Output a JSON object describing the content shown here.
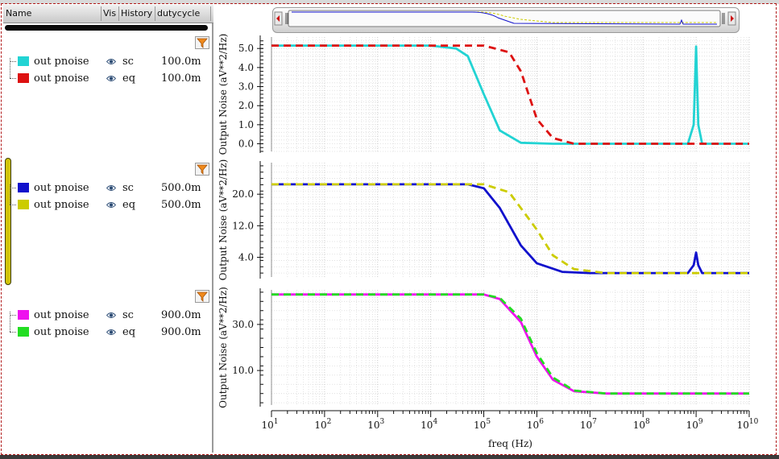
{
  "legend": {
    "headers": {
      "name": "Name",
      "vis": "Vis",
      "history": "History",
      "dutycycle": "dutycycle"
    },
    "groups": [
      {
        "rows": [
          {
            "name": "out pnoise",
            "history": "sc",
            "dutycycle": "100.0m",
            "color": "#22d3d3"
          },
          {
            "name": "out pnoise",
            "history": "eq",
            "dutycycle": "100.0m",
            "color": "#dd1111"
          }
        ]
      },
      {
        "rows": [
          {
            "name": "out pnoise",
            "history": "sc",
            "dutycycle": "500.0m",
            "color": "#1111cc"
          },
          {
            "name": "out pnoise",
            "history": "eq",
            "dutycycle": "500.0m",
            "color": "#cccc00"
          }
        ]
      },
      {
        "rows": [
          {
            "name": "out pnoise",
            "history": "sc",
            "dutycycle": "900.0m",
            "color": "#ee11ee"
          },
          {
            "name": "out pnoise",
            "history": "eq",
            "dutycycle": "900.0m",
            "color": "#22dd22"
          }
        ]
      }
    ]
  },
  "plot": {
    "xlabel": "freq (Hz)",
    "ylabel": "Output Noise (aV**2/Hz)",
    "x_ticks": [
      {
        "base": "10",
        "exp": "1"
      },
      {
        "base": "10",
        "exp": "2"
      },
      {
        "base": "10",
        "exp": "3"
      },
      {
        "base": "10",
        "exp": "4"
      },
      {
        "base": "10",
        "exp": "5"
      },
      {
        "base": "10",
        "exp": "6"
      },
      {
        "base": "10",
        "exp": "7"
      },
      {
        "base": "10",
        "exp": "8"
      },
      {
        "base": "10",
        "exp": "9"
      },
      {
        "base": "10",
        "exp": "10"
      }
    ]
  },
  "chart_data": [
    {
      "type": "line",
      "x_scale": "log",
      "xlim": [
        10,
        10000000000
      ],
      "ylim": [
        -0.4,
        5.6
      ],
      "y_ticks": [
        "0.0",
        "1.0",
        "2.0",
        "3.0",
        "4.0",
        "5.0"
      ],
      "y_tick_values": [
        0,
        1,
        2,
        3,
        4,
        5
      ],
      "series": [
        {
          "color": "#22d3d3",
          "style": "solid",
          "x": [
            10,
            10000,
            30000,
            50000,
            100000,
            200000,
            500000,
            2000000,
            700000000,
            900000000,
            1000000000,
            1100000000,
            1300000000,
            10000000000
          ],
          "y": [
            5.15,
            5.15,
            5.0,
            4.6,
            2.6,
            0.7,
            0.05,
            0.0,
            0.0,
            1.0,
            5.1,
            1.0,
            0.0,
            0.0
          ]
        },
        {
          "color": "#dd1111",
          "style": "dashed",
          "x": [
            10,
            100000,
            300000,
            500000,
            1000000,
            2000000,
            5000000,
            10000000000
          ],
          "y": [
            5.15,
            5.15,
            4.8,
            3.8,
            1.3,
            0.3,
            0.0,
            0.0
          ]
        }
      ]
    },
    {
      "type": "line",
      "x_scale": "log",
      "xlim": [
        10,
        10000000000
      ],
      "ylim": [
        -1,
        28
      ],
      "y_ticks": [
        "4.0",
        "12.0",
        "20.0"
      ],
      "y_tick_values": [
        4,
        12,
        20
      ],
      "series": [
        {
          "color": "#1111cc",
          "style": "solid",
          "x": [
            10,
            50000,
            100000,
            200000,
            500000,
            1000000,
            3000000,
            10000000,
            700000000,
            900000000,
            1000000000,
            1100000000,
            1300000000,
            10000000000
          ],
          "y": [
            22.5,
            22.5,
            21.5,
            16.5,
            7.0,
            2.5,
            0.3,
            0.0,
            0.0,
            2.0,
            5.2,
            2.0,
            0.0,
            0.0
          ]
        },
        {
          "color": "#cccc00",
          "style": "dashed",
          "x": [
            10,
            100000,
            300000,
            1000000,
            2000000,
            5000000,
            20000000,
            10000000000
          ],
          "y": [
            22.5,
            22.5,
            20.5,
            11.0,
            4.5,
            1.0,
            0.0,
            0.0
          ]
        }
      ]
    },
    {
      "type": "line",
      "x_scale": "log",
      "xlim": [
        10,
        10000000000
      ],
      "ylim": [
        -5,
        45
      ],
      "y_ticks": [
        "10.0",
        "30.0"
      ],
      "y_tick_values": [
        10,
        30
      ],
      "series": [
        {
          "color": "#ee11ee",
          "style": "solid",
          "x": [
            10,
            100000,
            200000,
            500000,
            1000000,
            2000000,
            5000000,
            20000000,
            10000000000
          ],
          "y": [
            43,
            43,
            41,
            31,
            16,
            6,
            1,
            0,
            0
          ]
        },
        {
          "color": "#22dd22",
          "style": "dashed",
          "x": [
            10,
            100000,
            200000,
            500000,
            1000000,
            2000000,
            5000000,
            20000000,
            10000000000
          ],
          "y": [
            43,
            43,
            41.5,
            32.5,
            17.5,
            7,
            1.3,
            0,
            0
          ]
        }
      ]
    }
  ]
}
